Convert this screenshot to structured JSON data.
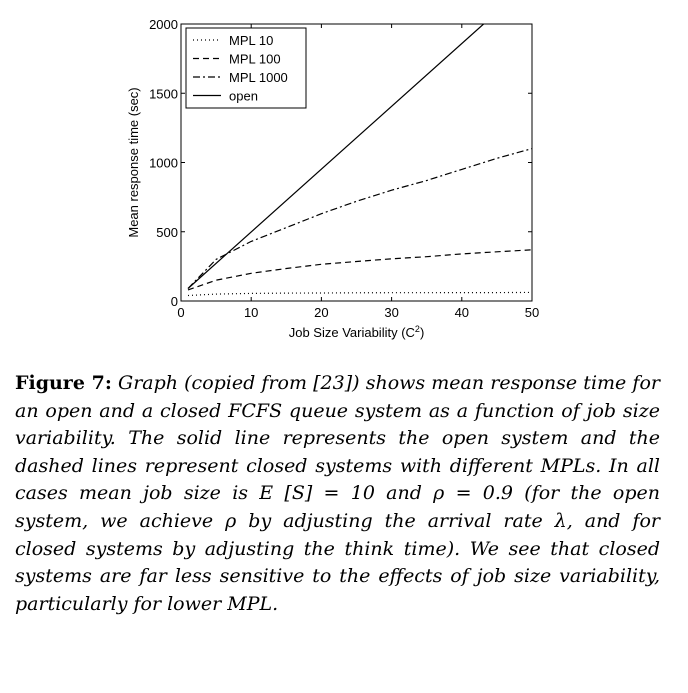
{
  "chart_data": {
    "type": "line",
    "xlabel": "Job Size Variability (C",
    "xlabel_sup": "2",
    "xlabel_end": ")",
    "ylabel": "Mean response time (sec)",
    "xlim": [
      0,
      50
    ],
    "ylim": [
      0,
      2000
    ],
    "x_ticks": [
      0,
      10,
      20,
      30,
      40,
      50
    ],
    "y_ticks": [
      0,
      500,
      1000,
      1500,
      2000
    ],
    "grid": false,
    "legend_position": "top-left",
    "series": [
      {
        "name": "MPL 10",
        "style": "dotted",
        "x": [
          1,
          5,
          10,
          15,
          20,
          25,
          30,
          35,
          40,
          45,
          50
        ],
        "y": [
          40,
          50,
          55,
          57,
          58,
          59,
          60,
          60,
          61,
          61,
          62
        ]
      },
      {
        "name": "MPL 100",
        "style": "dashed",
        "x": [
          1,
          5,
          10,
          15,
          20,
          25,
          30,
          35,
          40,
          45,
          50
        ],
        "y": [
          80,
          150,
          200,
          235,
          265,
          285,
          305,
          320,
          340,
          355,
          370
        ]
      },
      {
        "name": "MPL 1000",
        "style": "dashdot",
        "x": [
          1,
          5,
          10,
          15,
          20,
          25,
          30,
          35,
          40,
          45,
          50
        ],
        "y": [
          90,
          300,
          430,
          530,
          630,
          720,
          800,
          870,
          950,
          1030,
          1100
        ]
      },
      {
        "name": "open",
        "style": "solid",
        "x": [
          1,
          43.1
        ],
        "y": [
          90,
          2000
        ]
      }
    ]
  },
  "caption": {
    "label": "Figure 7:",
    "text": "Graph (copied from [23]) shows mean response time for an open and a closed FCFS queue system as a function of job size variability. The solid line represents the open system and the dashed lines represent closed systems with different MPLs. In all cases mean job size is E [S] = 10 and ρ = 0.9 (for the open system, we achieve ρ by adjusting the arrival rate λ, and for closed systems by adjusting the think time). We see that closed systems are far less sensitive to the effects of job size variability, particularly for lower MPL."
  }
}
